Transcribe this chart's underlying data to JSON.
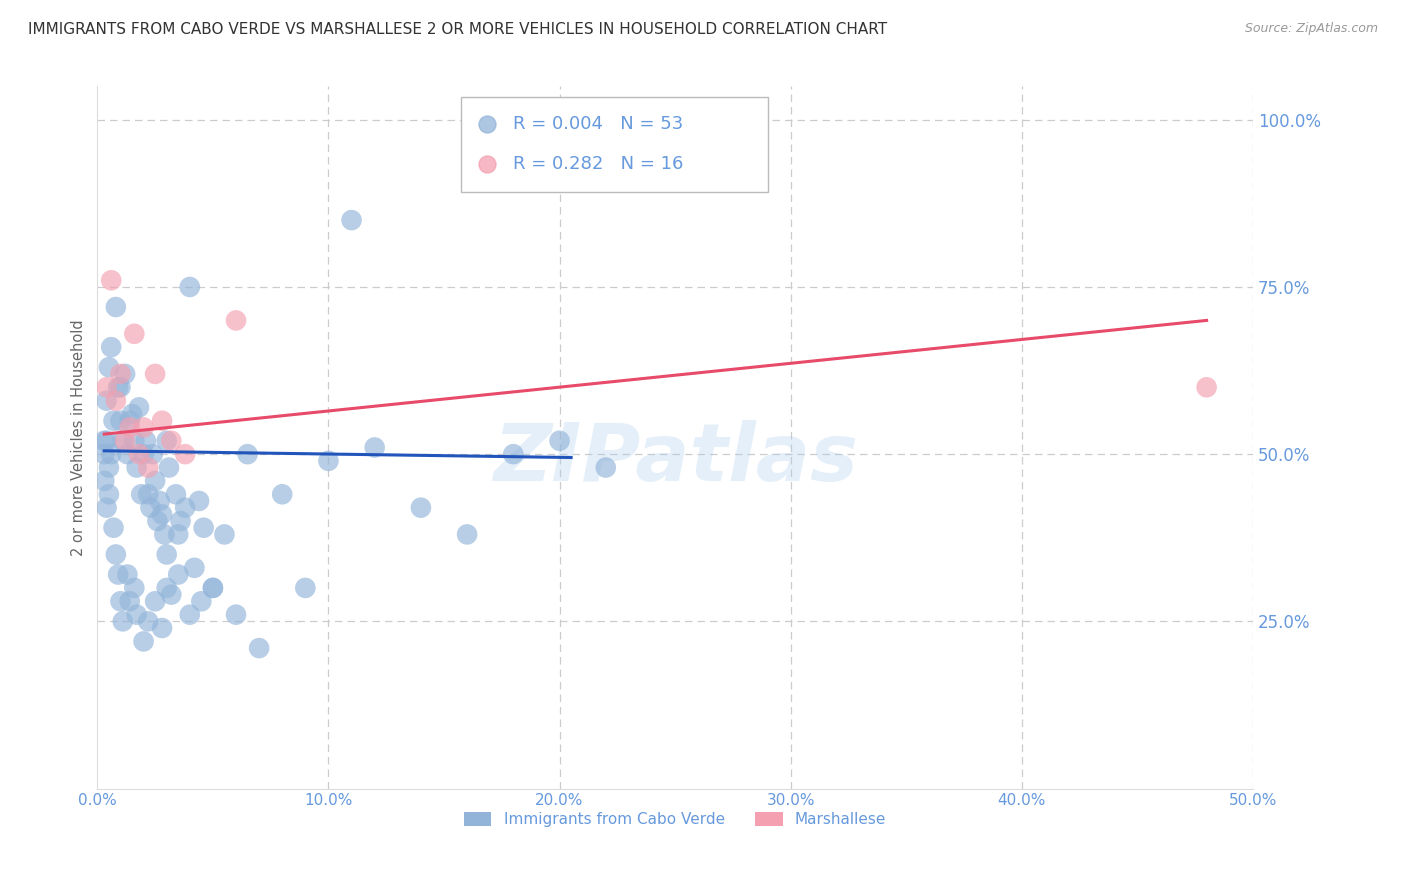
{
  "title": "IMMIGRANTS FROM CABO VERDE VS MARSHALLESE 2 OR MORE VEHICLES IN HOUSEHOLD CORRELATION CHART",
  "source": "Source: ZipAtlas.com",
  "ylabel": "2 or more Vehicles in Household",
  "x_ticklabels": [
    "0.0%",
    "10.0%",
    "20.0%",
    "30.0%",
    "40.0%",
    "50.0%"
  ],
  "x_ticks": [
    0.0,
    0.1,
    0.2,
    0.3,
    0.4,
    0.5
  ],
  "y_ticklabels_right": [
    "100.0%",
    "75.0%",
    "50.0%",
    "25.0%"
  ],
  "y_ticks_right": [
    1.0,
    0.75,
    0.5,
    0.25
  ],
  "xlim": [
    0.0,
    0.5
  ],
  "ylim": [
    0.0,
    1.05
  ],
  "legend_blue_label": "Immigrants from Cabo Verde",
  "legend_pink_label": "Marshallese",
  "legend_blue_R": "0.004",
  "legend_blue_N": "53",
  "legend_pink_R": "0.282",
  "legend_pink_N": "16",
  "blue_color": "#92B4D9",
  "pink_color": "#F4A0B0",
  "blue_line_color": "#2255BB",
  "pink_line_color": "#E84A6A",
  "grid_color": "#CCCCCC",
  "watermark": "ZIPatlas",
  "title_color": "#333333",
  "axis_color": "#6699DD",
  "cabo_verde_x": [
    0.003,
    0.004,
    0.005,
    0.006,
    0.007,
    0.008,
    0.009,
    0.01,
    0.01,
    0.011,
    0.012,
    0.013,
    0.014,
    0.015,
    0.016,
    0.017,
    0.018,
    0.019,
    0.02,
    0.021,
    0.022,
    0.023,
    0.024,
    0.025,
    0.026,
    0.027,
    0.028,
    0.029,
    0.03,
    0.031,
    0.032,
    0.034,
    0.036,
    0.038,
    0.04,
    0.042,
    0.044,
    0.046,
    0.05,
    0.055,
    0.06,
    0.065,
    0.07,
    0.08,
    0.09,
    0.1,
    0.11,
    0.12,
    0.14,
    0.16,
    0.18,
    0.2,
    0.22
  ],
  "cabo_verde_y": [
    0.52,
    0.58,
    0.63,
    0.66,
    0.55,
    0.72,
    0.6,
    0.6,
    0.55,
    0.52,
    0.62,
    0.5,
    0.55,
    0.56,
    0.52,
    0.48,
    0.57,
    0.44,
    0.5,
    0.52,
    0.44,
    0.42,
    0.5,
    0.46,
    0.4,
    0.43,
    0.41,
    0.38,
    0.52,
    0.48,
    0.29,
    0.44,
    0.4,
    0.42,
    0.75,
    0.33,
    0.43,
    0.39,
    0.3,
    0.38,
    0.26,
    0.5,
    0.21,
    0.44,
    0.3,
    0.49,
    0.85,
    0.51,
    0.42,
    0.38,
    0.5,
    0.52,
    0.48
  ],
  "cabo_verde_x_extra": [
    0.003,
    0.003,
    0.004,
    0.004,
    0.005,
    0.005,
    0.006,
    0.007,
    0.008,
    0.009,
    0.01,
    0.011,
    0.013,
    0.014,
    0.016,
    0.017,
    0.02,
    0.022,
    0.025,
    0.028,
    0.03,
    0.035,
    0.04,
    0.045,
    0.05,
    0.03,
    0.035
  ],
  "cabo_verde_y_extra": [
    0.5,
    0.46,
    0.52,
    0.42,
    0.48,
    0.44,
    0.5,
    0.39,
    0.35,
    0.32,
    0.28,
    0.25,
    0.32,
    0.28,
    0.3,
    0.26,
    0.22,
    0.25,
    0.28,
    0.24,
    0.3,
    0.32,
    0.26,
    0.28,
    0.3,
    0.35,
    0.38
  ],
  "marshallese_x": [
    0.004,
    0.006,
    0.008,
    0.01,
    0.012,
    0.014,
    0.016,
    0.018,
    0.02,
    0.022,
    0.025,
    0.028,
    0.032,
    0.038,
    0.06,
    0.48
  ],
  "marshallese_y": [
    0.6,
    0.76,
    0.58,
    0.62,
    0.52,
    0.54,
    0.68,
    0.5,
    0.54,
    0.48,
    0.62,
    0.55,
    0.52,
    0.5,
    0.7,
    0.6
  ],
  "blue_trend_x": [
    0.003,
    0.205
  ],
  "blue_trend_y": [
    0.505,
    0.495
  ],
  "pink_trend_x": [
    0.003,
    0.48
  ],
  "pink_trend_y": [
    0.53,
    0.7
  ]
}
